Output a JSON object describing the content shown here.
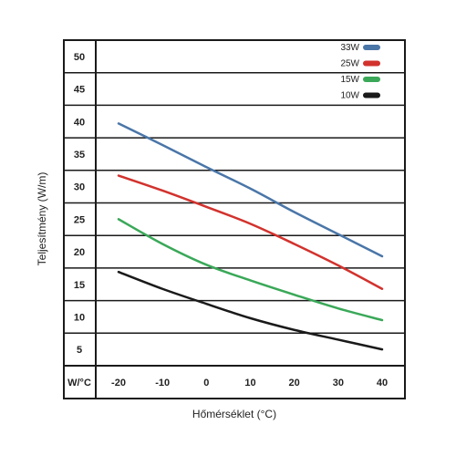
{
  "chart_data": {
    "type": "line",
    "xlabel": "Hőmérséklet (°C)",
    "ylabel": "Teljesítmény (W/m)",
    "corner_label": "W/°C",
    "x_ticks": [
      "-20",
      "-10",
      "0",
      "10",
      "20",
      "30",
      "40"
    ],
    "y_ticks": [
      "5",
      "10",
      "15",
      "20",
      "25",
      "30",
      "35",
      "40",
      "45",
      "50"
    ],
    "xlim": [
      -20,
      40
    ],
    "ylim": [
      2.5,
      52.5
    ],
    "grid": "horizontal",
    "legend_position": "top-right",
    "x": [
      -20,
      -10,
      0,
      10,
      20,
      30,
      40
    ],
    "series": [
      {
        "name": "33W",
        "color": "#4a76a8",
        "values": [
          39.7,
          36.4,
          33.0,
          29.7,
          26.1,
          22.7,
          19.3
        ]
      },
      {
        "name": "25W",
        "color": "#d2322d",
        "values": [
          31.7,
          29.4,
          26.9,
          24.3,
          21.2,
          17.9,
          14.3
        ]
      },
      {
        "name": "15W",
        "color": "#3aa858",
        "values": [
          25.0,
          21.2,
          18.0,
          15.6,
          13.4,
          11.3,
          9.5
        ]
      },
      {
        "name": "10W",
        "color": "#1a1a1a",
        "values": [
          16.9,
          14.3,
          12.0,
          9.8,
          8.0,
          6.5,
          5.0
        ]
      }
    ]
  }
}
